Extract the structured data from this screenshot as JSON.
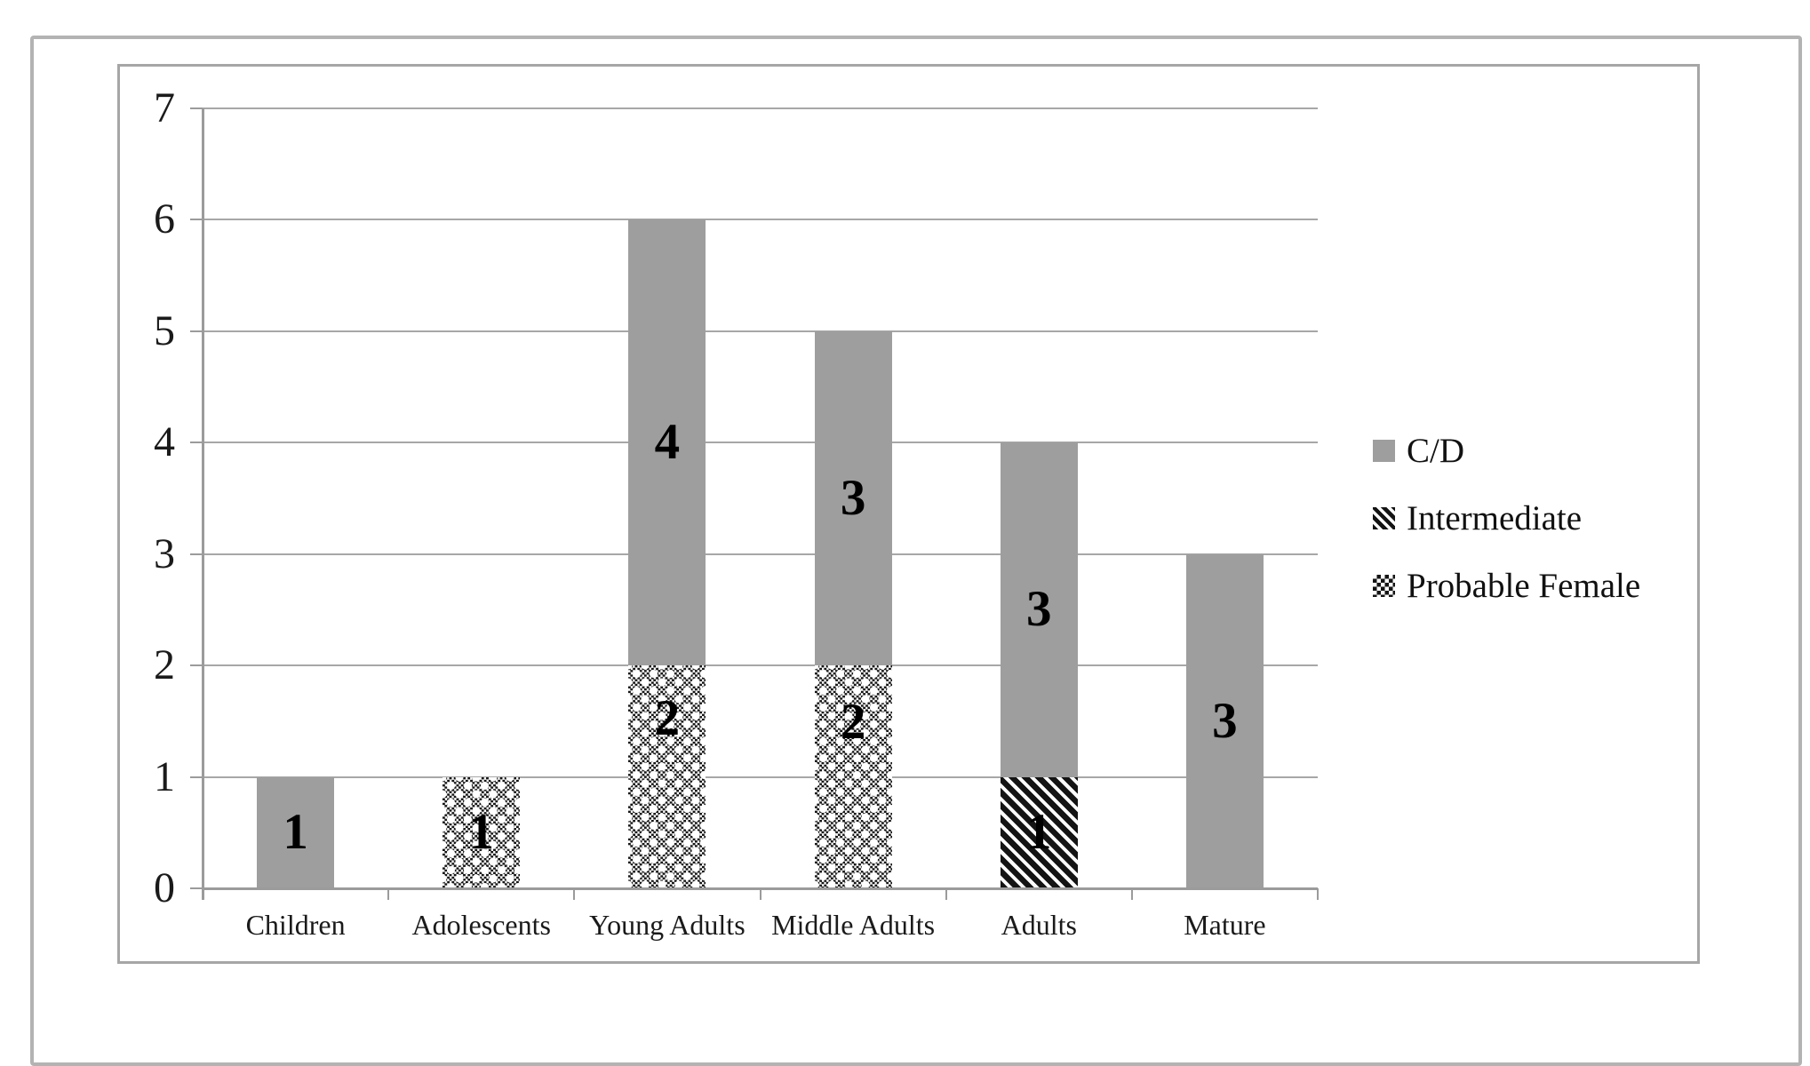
{
  "figure": {
    "background": "#ffffff",
    "outer_frame_color": "#b3b3b3",
    "chart_border_color": "#a6a6a6"
  },
  "colors": {
    "bar_gray": "#9e9e9e",
    "pattern_ink": "#141414",
    "gridline": "#a7a7a7",
    "axis": "#9b9b9b",
    "text": "#1a1a1a"
  },
  "chart_data": {
    "type": "bar",
    "stacked": true,
    "title": "",
    "xlabel": "",
    "ylabel": "",
    "categories": [
      "Children",
      "Adolescents",
      "Young Adults",
      "Middle Adults",
      "Adults",
      "Mature"
    ],
    "series": [
      {
        "name": "C/D",
        "pattern": "solid",
        "values": [
          1,
          0,
          4,
          3,
          3,
          3
        ]
      },
      {
        "name": "Intermediate",
        "pattern": "stripes",
        "values": [
          0,
          0,
          0,
          0,
          1,
          0
        ]
      },
      {
        "name": "Probable Female",
        "pattern": "checker",
        "values": [
          0,
          1,
          2,
          2,
          0,
          0
        ]
      }
    ],
    "totals": [
      1,
      1,
      6,
      5,
      4,
      3
    ],
    "data_labels": true,
    "label_dy": {
      "Probable Female": [
        0,
        0,
        -66,
        -62,
        0,
        0
      ]
    },
    "ylim": [
      0,
      7
    ],
    "yticks": [
      "0",
      "1",
      "2",
      "3",
      "4",
      "5",
      "6",
      "7"
    ],
    "grid": true,
    "legend_position": "right"
  }
}
